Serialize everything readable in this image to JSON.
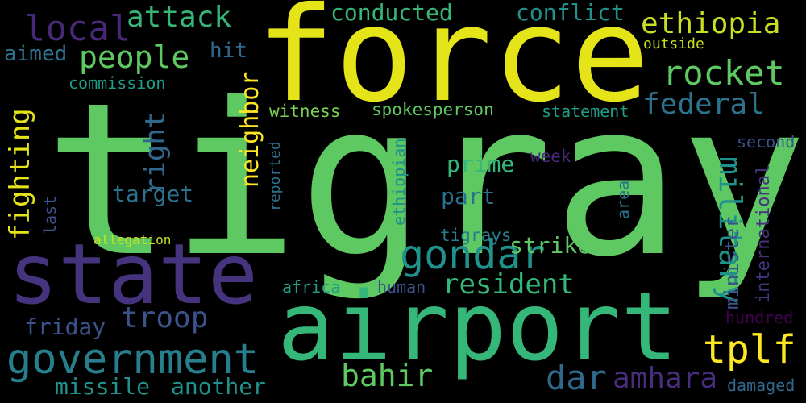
{
  "words": [
    {
      "text": "tigray",
      "color": "#5ec962"
    },
    {
      "text": "force",
      "color": "#e4e419"
    },
    {
      "text": "state",
      "color": "#46337e"
    },
    {
      "text": "airport",
      "color": "#35b779"
    },
    {
      "text": "government",
      "color": "#277f8e"
    },
    {
      "text": "gondar",
      "color": "#21918c"
    },
    {
      "text": "people",
      "color": "#5ec962"
    },
    {
      "text": "local",
      "color": "#482878"
    },
    {
      "text": "attack",
      "color": "#35b779"
    },
    {
      "text": "ethiopia",
      "color": "#c8e020"
    },
    {
      "text": "rocket",
      "color": "#5ec962"
    },
    {
      "text": "federal",
      "color": "#2c728e"
    },
    {
      "text": "military",
      "color": "#21918c"
    },
    {
      "text": "tplf",
      "color": "#fde725"
    },
    {
      "text": "resident",
      "color": "#35b779"
    },
    {
      "text": "dar",
      "color": "#31688e"
    },
    {
      "text": "bahir",
      "color": "#5ec962"
    },
    {
      "text": "amhara",
      "color": "#472d7b"
    },
    {
      "text": "troop",
      "color": "#3b528b"
    },
    {
      "text": "conducted",
      "color": "#35b779"
    },
    {
      "text": "conflict",
      "color": "#21918c"
    },
    {
      "text": "fighting",
      "color": "#e4e419"
    },
    {
      "text": "right",
      "color": "#31688e"
    },
    {
      "text": "neighbor",
      "color": "#fde725"
    },
    {
      "text": "target",
      "color": "#2c728e"
    },
    {
      "text": "strike",
      "color": "#5ec962"
    },
    {
      "text": "prime",
      "color": "#35b779"
    },
    {
      "text": "part",
      "color": "#2c728e"
    },
    {
      "text": "friday",
      "color": "#3b528b"
    },
    {
      "text": "missile",
      "color": "#21918c"
    },
    {
      "text": "another",
      "color": "#21918c"
    },
    {
      "text": "aimed",
      "color": "#2c728e"
    },
    {
      "text": "hit",
      "color": "#31688e"
    },
    {
      "text": "commission",
      "color": "#1f9e89"
    },
    {
      "text": "witness",
      "color": "#7ad151"
    },
    {
      "text": "spokesperson",
      "color": "#5ec962"
    },
    {
      "text": "statement",
      "color": "#1f9e89"
    },
    {
      "text": "outside",
      "color": "#c8e020"
    },
    {
      "text": "second",
      "color": "#3b528b"
    },
    {
      "text": "week",
      "color": "#482878"
    },
    {
      "text": "minister",
      "color": "#3b528b"
    },
    {
      "text": "international",
      "color": "#46337e"
    },
    {
      "text": "reported",
      "color": "#2c728e"
    },
    {
      "text": "ethiopian",
      "color": "#21918c"
    },
    {
      "text": "last",
      "color": "#3b528b"
    },
    {
      "text": "allegation",
      "color": "#c8e020"
    },
    {
      "text": "tigrays",
      "color": "#277f8e"
    },
    {
      "text": "area",
      "color": "#2c728e"
    },
    {
      "text": "africa",
      "color": "#1f9e89"
    },
    {
      "text": "human",
      "color": "#3b528b"
    },
    {
      "text": "hundred",
      "color": "#440154"
    },
    {
      "text": "damaged",
      "color": "#31688e"
    }
  ]
}
